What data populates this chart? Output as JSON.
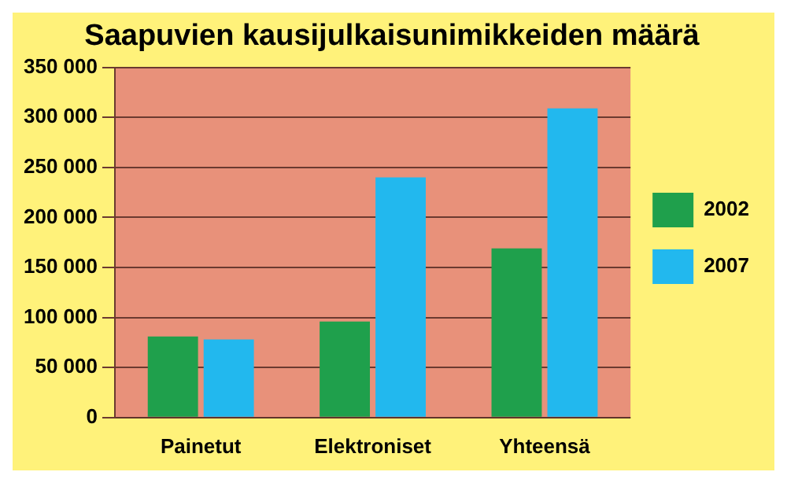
{
  "chart_data": {
    "type": "bar",
    "title": "Saapuvien kausijulkaisunimikkeiden määrä",
    "categories": [
      "Painetut",
      "Elektroniset",
      "Yhteensä"
    ],
    "series": [
      {
        "name": "2002",
        "color": "#1fa04c",
        "values": [
          81000,
          96000,
          169000
        ]
      },
      {
        "name": "2007",
        "color": "#22b8ee",
        "values": [
          78000,
          240000,
          309000
        ]
      }
    ],
    "ylim": [
      0,
      350000
    ],
    "yticks": [
      {
        "value": 0,
        "label": "0"
      },
      {
        "value": 50000,
        "label": "50 000"
      },
      {
        "value": 100000,
        "label": "100 000"
      },
      {
        "value": 150000,
        "label": "150 000"
      },
      {
        "value": 200000,
        "label": "200 000"
      },
      {
        "value": 250000,
        "label": "250 000"
      },
      {
        "value": 300000,
        "label": "300 000"
      },
      {
        "value": 350000,
        "label": "350 000"
      }
    ],
    "grid": "y",
    "legend": "right"
  }
}
